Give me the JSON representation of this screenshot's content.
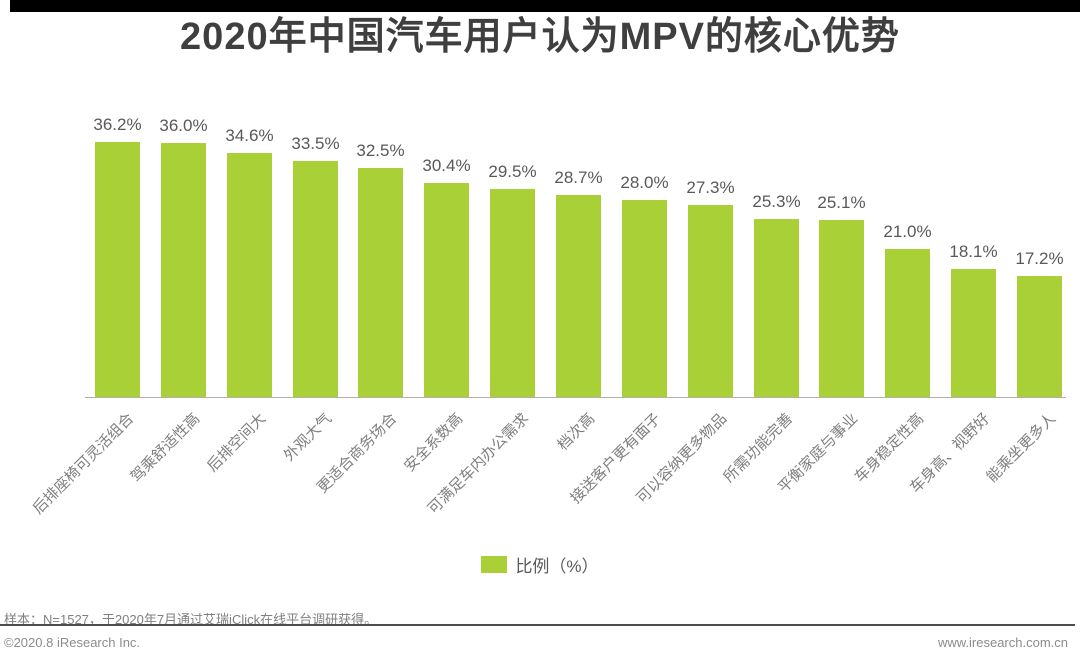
{
  "title": "2020年中国汽车用户认为MPV的核心优势",
  "legend": {
    "label": "比例（%）"
  },
  "footer": {
    "sample_note": "样本：N=1527，于2020年7月通过艾瑞iClick在线平台调研获得。",
    "copyright": "©2020.8 iResearch Inc.",
    "website": "www.iresearch.com.cn"
  },
  "colors": {
    "bar": "#a9d137",
    "title_text": "#3f3f3f",
    "value_label": "#595959",
    "category_label": "#7f7f7f",
    "axis_line": "#b0b0b0",
    "footer_text": "#8c8c8c",
    "divider": "#4d4d4d",
    "top_bar": "#000000"
  },
  "chart_data": {
    "type": "bar",
    "title": "2020年中国汽车用户认为MPV的核心优势",
    "series_name": "比例（%）",
    "categories": [
      "后排座椅可灵活组合",
      "驾乘舒适性高",
      "后排空间大",
      "外观大气",
      "更适合商务场合",
      "安全系数高",
      "可满足车内办公需求",
      "档次高",
      "接送客户更有面子",
      "可以容纳更多物品",
      "所需功能完善",
      "平衡家庭与事业",
      "车身稳定性高",
      "车身高、视野好",
      "能乘坐更多人"
    ],
    "values": [
      36.2,
      36.0,
      34.6,
      33.5,
      32.5,
      30.4,
      29.5,
      28.7,
      28.0,
      27.3,
      25.3,
      25.1,
      21.0,
      18.1,
      17.2
    ],
    "value_suffix": "%",
    "xlabel": "",
    "ylabel": "",
    "ylim": [
      0,
      40
    ],
    "grid": false,
    "data_labels": true,
    "legend_position": "bottom",
    "category_label_rotation_deg": -45
  }
}
